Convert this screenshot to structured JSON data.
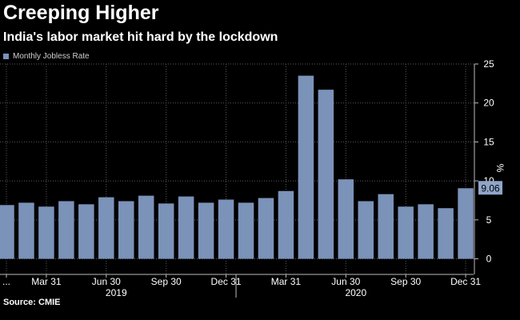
{
  "header": {
    "title": "Creeping Higher",
    "subtitle": "India's labor market hit hard by the lockdown"
  },
  "legend": {
    "label": "Monthly Jobless Rate"
  },
  "source": "Source: CMIE",
  "chart_data": {
    "type": "bar",
    "title": "Creeping Higher",
    "subtitle": "India's labor market hit hard by the lockdown",
    "series_name": "Monthly Jobless Rate",
    "values": [
      6.9,
      7.2,
      6.7,
      7.4,
      7.0,
      7.9,
      7.4,
      8.1,
      7.1,
      8.0,
      7.2,
      7.6,
      7.2,
      7.8,
      8.7,
      23.5,
      21.7,
      10.2,
      7.4,
      8.3,
      6.7,
      7.0,
      6.5,
      9.06
    ],
    "x_tick_labels": [
      "...",
      "Mar 31",
      "Jun 30",
      "Sep 30",
      "Dec 31",
      "Mar 31",
      "Jun 30",
      "Sep 30",
      "Dec 31"
    ],
    "x_tick_bar_index": [
      0,
      2,
      5,
      8,
      11,
      14,
      17,
      20,
      23
    ],
    "year_labels": [
      {
        "label": "2019",
        "start_index": 0,
        "end_index": 11
      },
      {
        "label": "2020",
        "start_index": 12,
        "end_index": 23
      }
    ],
    "y_ticks": [
      0,
      5,
      10,
      15,
      20,
      25
    ],
    "ylim": [
      -2,
      25
    ],
    "ylabel": "%",
    "last_value_label": "9.06",
    "grid": true,
    "bar_color": "#7b92b9",
    "last_label_bg": "#8fa6c9",
    "legend_position": "top-left"
  }
}
